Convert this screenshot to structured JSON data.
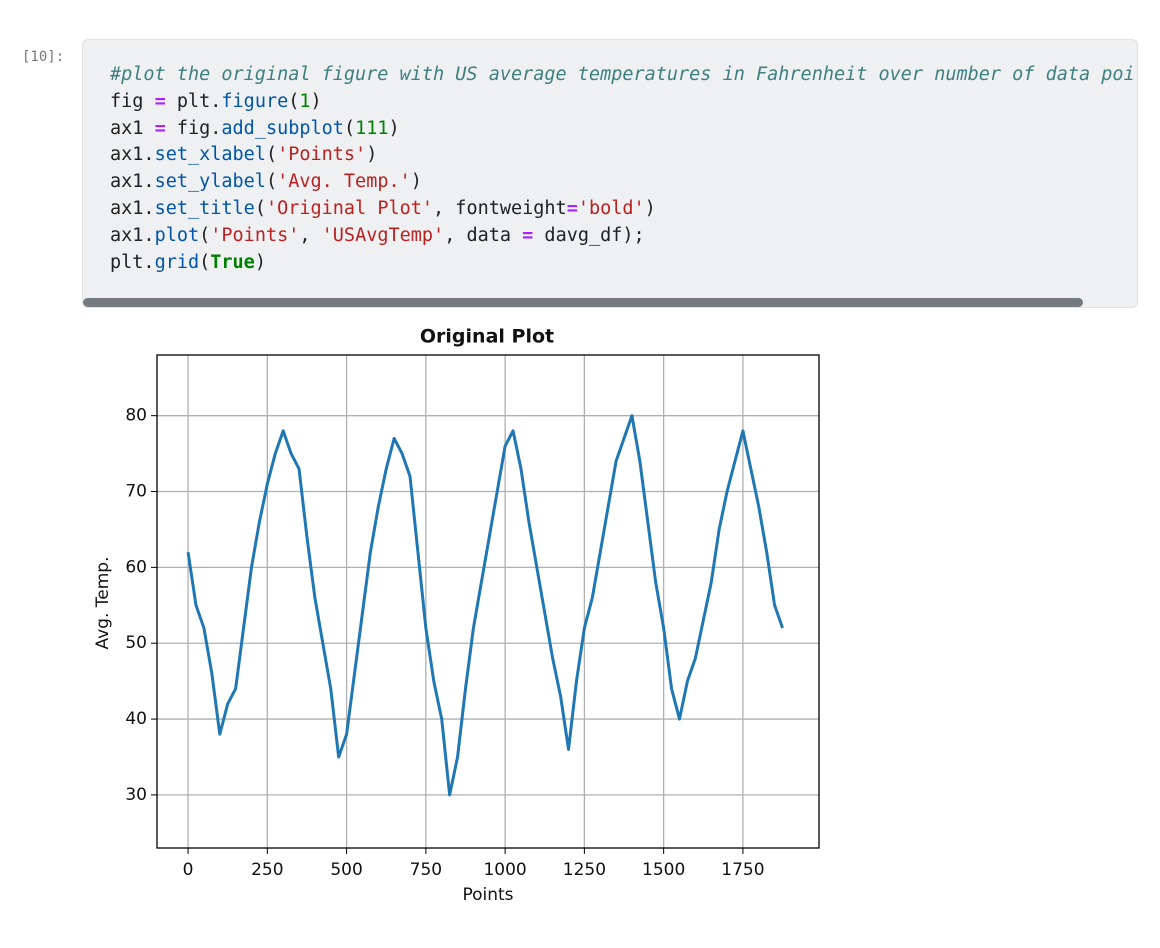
{
  "cell": {
    "prompt": "[10]:",
    "lines": [
      {
        "tokens": [
          {
            "text": "#plot the original figure with US average temperatures in Fahrenheit over number of data poi",
            "color": "#3d7f80",
            "style": "italic"
          }
        ]
      },
      {
        "tokens": [
          {
            "text": "fig ",
            "color": "#212121"
          },
          {
            "text": "=",
            "color": "#aa22ff",
            "style": "bold"
          },
          {
            "text": " plt.",
            "color": "#212121"
          },
          {
            "text": "figure",
            "color": "#0055aa"
          },
          {
            "text": "(",
            "color": "#212121"
          },
          {
            "text": "1",
            "color": "#008000"
          },
          {
            "text": ")",
            "color": "#212121"
          }
        ]
      },
      {
        "tokens": [
          {
            "text": "ax1 ",
            "color": "#212121"
          },
          {
            "text": "=",
            "color": "#aa22ff",
            "style": "bold"
          },
          {
            "text": " fig.",
            "color": "#212121"
          },
          {
            "text": "add_subplot",
            "color": "#0055aa"
          },
          {
            "text": "(",
            "color": "#212121"
          },
          {
            "text": "111",
            "color": "#008000"
          },
          {
            "text": ")",
            "color": "#212121"
          }
        ]
      },
      {
        "tokens": [
          {
            "text": "ax1.",
            "color": "#212121"
          },
          {
            "text": "set_xlabel",
            "color": "#0055aa"
          },
          {
            "text": "(",
            "color": "#212121"
          },
          {
            "text": "'Points'",
            "color": "#ba2121"
          },
          {
            "text": ")",
            "color": "#212121"
          }
        ]
      },
      {
        "tokens": [
          {
            "text": "ax1.",
            "color": "#212121"
          },
          {
            "text": "set_ylabel",
            "color": "#0055aa"
          },
          {
            "text": "(",
            "color": "#212121"
          },
          {
            "text": "'Avg. Temp.'",
            "color": "#ba2121"
          },
          {
            "text": ")",
            "color": "#212121"
          }
        ]
      },
      {
        "tokens": [
          {
            "text": "ax1.",
            "color": "#212121"
          },
          {
            "text": "set_title",
            "color": "#0055aa"
          },
          {
            "text": "(",
            "color": "#212121"
          },
          {
            "text": "'Original Plot'",
            "color": "#ba2121"
          },
          {
            "text": ", fontweight",
            "color": "#212121"
          },
          {
            "text": "=",
            "color": "#aa22ff",
            "style": "bold"
          },
          {
            "text": "'bold'",
            "color": "#ba2121"
          },
          {
            "text": ")",
            "color": "#212121"
          }
        ]
      },
      {
        "tokens": [
          {
            "text": "ax1.",
            "color": "#212121"
          },
          {
            "text": "plot",
            "color": "#0055aa"
          },
          {
            "text": "(",
            "color": "#212121"
          },
          {
            "text": "'Points'",
            "color": "#ba2121"
          },
          {
            "text": ", ",
            "color": "#212121"
          },
          {
            "text": "'USAvgTemp'",
            "color": "#ba2121"
          },
          {
            "text": ", data ",
            "color": "#212121"
          },
          {
            "text": "=",
            "color": "#aa22ff",
            "style": "bold"
          },
          {
            "text": " davg_df);",
            "color": "#212121"
          }
        ]
      },
      {
        "tokens": [
          {
            "text": "plt.",
            "color": "#212121"
          },
          {
            "text": "grid",
            "color": "#0055aa"
          },
          {
            "text": "(",
            "color": "#212121"
          },
          {
            "text": "True",
            "color": "#008000",
            "style": "bold"
          },
          {
            "text": ")",
            "color": "#212121"
          }
        ]
      }
    ]
  },
  "chart_data": {
    "type": "line",
    "title": "Original Plot",
    "x_label": "Points",
    "y_label": "Avg. Temp.",
    "color": "#1f77b4",
    "grid": true,
    "x": [
      0,
      25,
      50,
      75,
      100,
      125,
      150,
      175,
      200,
      225,
      250,
      275,
      300,
      325,
      350,
      375,
      400,
      425,
      450,
      475,
      500,
      525,
      550,
      575,
      600,
      625,
      650,
      675,
      700,
      725,
      750,
      775,
      800,
      825,
      850,
      875,
      900,
      925,
      950,
      975,
      1000,
      1025,
      1050,
      1075,
      1100,
      1125,
      1150,
      1175,
      1200,
      1225,
      1250,
      1275,
      1300,
      1325,
      1350,
      1375,
      1400,
      1425,
      1450,
      1475,
      1500,
      1525,
      1550,
      1575,
      1600,
      1625,
      1650,
      1675,
      1700,
      1725,
      1750,
      1775,
      1800,
      1825,
      1850,
      1875
    ],
    "values": [
      62,
      55,
      52,
      46,
      38,
      42,
      44,
      52,
      60,
      66,
      71,
      75,
      78,
      75,
      73,
      64,
      56,
      50,
      44,
      35,
      38,
      46,
      54,
      62,
      68,
      73,
      77,
      75,
      72,
      62,
      52,
      45,
      40,
      30,
      35,
      44,
      52,
      58,
      64,
      70,
      76,
      78,
      73,
      66,
      60,
      54,
      48,
      43,
      36,
      45,
      52,
      56,
      62,
      68,
      74,
      77,
      80,
      74,
      66,
      58,
      52,
      44,
      40,
      45,
      48,
      53,
      58,
      65,
      70,
      74,
      78,
      73,
      68,
      62,
      55,
      52
    ],
    "xlim": [
      -98,
      1990
    ],
    "ylim": [
      23,
      88
    ],
    "xticks": [
      0,
      250,
      500,
      750,
      1000,
      1250,
      1500,
      1750
    ],
    "yticks": [
      30,
      40,
      50,
      60,
      70,
      80
    ]
  }
}
